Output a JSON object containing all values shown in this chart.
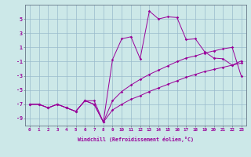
{
  "xlabel": "Windchill (Refroidissement éolien,°C)",
  "x": [
    0,
    1,
    2,
    3,
    4,
    5,
    6,
    7,
    8,
    9,
    10,
    11,
    12,
    13,
    14,
    15,
    16,
    17,
    18,
    19,
    20,
    21,
    22,
    23
  ],
  "line_main": [
    -7,
    -7,
    -7.5,
    -7,
    -7.5,
    -8,
    -6.5,
    -6.5,
    -9.5,
    -0.7,
    2.2,
    2.5,
    -0.6,
    6.1,
    5.0,
    5.3,
    5.2,
    2.1,
    2.2,
    0.4,
    -0.5,
    -0.6,
    -1.5,
    -0.9
  ],
  "line_mid": [
    -7,
    -7,
    -7.5,
    -7,
    -7.5,
    -8,
    -6.5,
    -7.0,
    -9.5,
    -6.5,
    -5.2,
    -4.3,
    -3.5,
    -2.8,
    -2.2,
    -1.6,
    -1.0,
    -0.5,
    -0.2,
    0.2,
    0.5,
    0.8,
    1.0,
    -3.1
  ],
  "line_low": [
    -7,
    -7,
    -7.5,
    -7,
    -7.5,
    -8,
    -6.5,
    -7.0,
    -9.5,
    -7.8,
    -7.0,
    -6.3,
    -5.8,
    -5.2,
    -4.7,
    -4.2,
    -3.7,
    -3.2,
    -2.8,
    -2.4,
    -2.1,
    -1.8,
    -1.5,
    -1.2
  ],
  "bg_color": "#cce8e8",
  "line_color": "#990099",
  "grid_color": "#99bbcc",
  "spine_color": "#667788",
  "xlim": [
    -0.5,
    23.5
  ],
  "ylim": [
    -10,
    7
  ],
  "yticks": [
    -9,
    -7,
    -5,
    -3,
    -1,
    1,
    3,
    5
  ],
  "xticks": [
    0,
    1,
    2,
    3,
    4,
    5,
    6,
    7,
    8,
    9,
    10,
    11,
    12,
    13,
    14,
    15,
    16,
    17,
    18,
    19,
    20,
    21,
    22,
    23
  ]
}
